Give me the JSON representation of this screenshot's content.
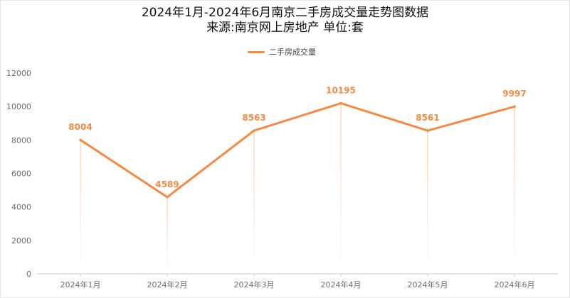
{
  "colors": {
    "series": "#f58a42",
    "dropline_top": "#f7b385",
    "axis": "#cccccc",
    "tick_text": "#6e6e6e",
    "title_text": "#111111"
  },
  "chart_data": {
    "type": "line",
    "title": "2024年1月-2024年6月南京二手房成交量走势图数据",
    "subtitle": "来源:南京网上房地产 单位:套",
    "xlabel": "",
    "ylabel": "",
    "categories": [
      "2024年1月",
      "2024年2月",
      "2024年3月",
      "2024年4月",
      "2024年5月",
      "2024年6月"
    ],
    "series": [
      {
        "name": "二手房成交量",
        "values": [
          8004,
          4589,
          8563,
          10195,
          8561,
          9997
        ]
      }
    ],
    "ylim": [
      0,
      12000
    ],
    "yticks": [
      0,
      2000,
      4000,
      6000,
      8000,
      10000,
      12000
    ],
    "data_labels": true,
    "drop_lines": true,
    "grid": false,
    "legend_position": "top-center"
  }
}
